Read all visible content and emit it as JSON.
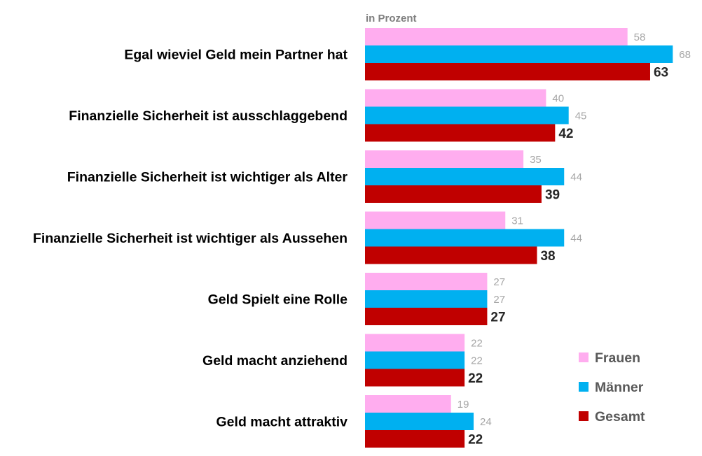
{
  "chart_data": {
    "type": "bar",
    "orientation": "horizontal",
    "unit_label": "in Prozent",
    "categories": [
      "Egal wieviel Geld mein Partner hat",
      "Finanzielle Sicherheit ist ausschlaggebend",
      "Finanzielle Sicherheit ist wichtiger als Alter",
      "Finanzielle Sicherheit ist wichtiger als Aussehen",
      "Geld Spielt eine Rolle",
      "Geld macht anziehend",
      "Geld macht attraktiv"
    ],
    "series": [
      {
        "name": "Frauen",
        "color": "#ffadef",
        "values": [
          58,
          40,
          35,
          31,
          27,
          22,
          19
        ]
      },
      {
        "name": "Männer",
        "color": "#00b0f0",
        "values": [
          68,
          45,
          44,
          44,
          27,
          22,
          24
        ]
      },
      {
        "name": "Gesamt",
        "color": "#c00000",
        "values": [
          63,
          42,
          39,
          38,
          27,
          22,
          22
        ]
      }
    ],
    "value_labels": true,
    "xlim": [
      0,
      70
    ],
    "grid": false,
    "legend_position": "bottom-right"
  }
}
